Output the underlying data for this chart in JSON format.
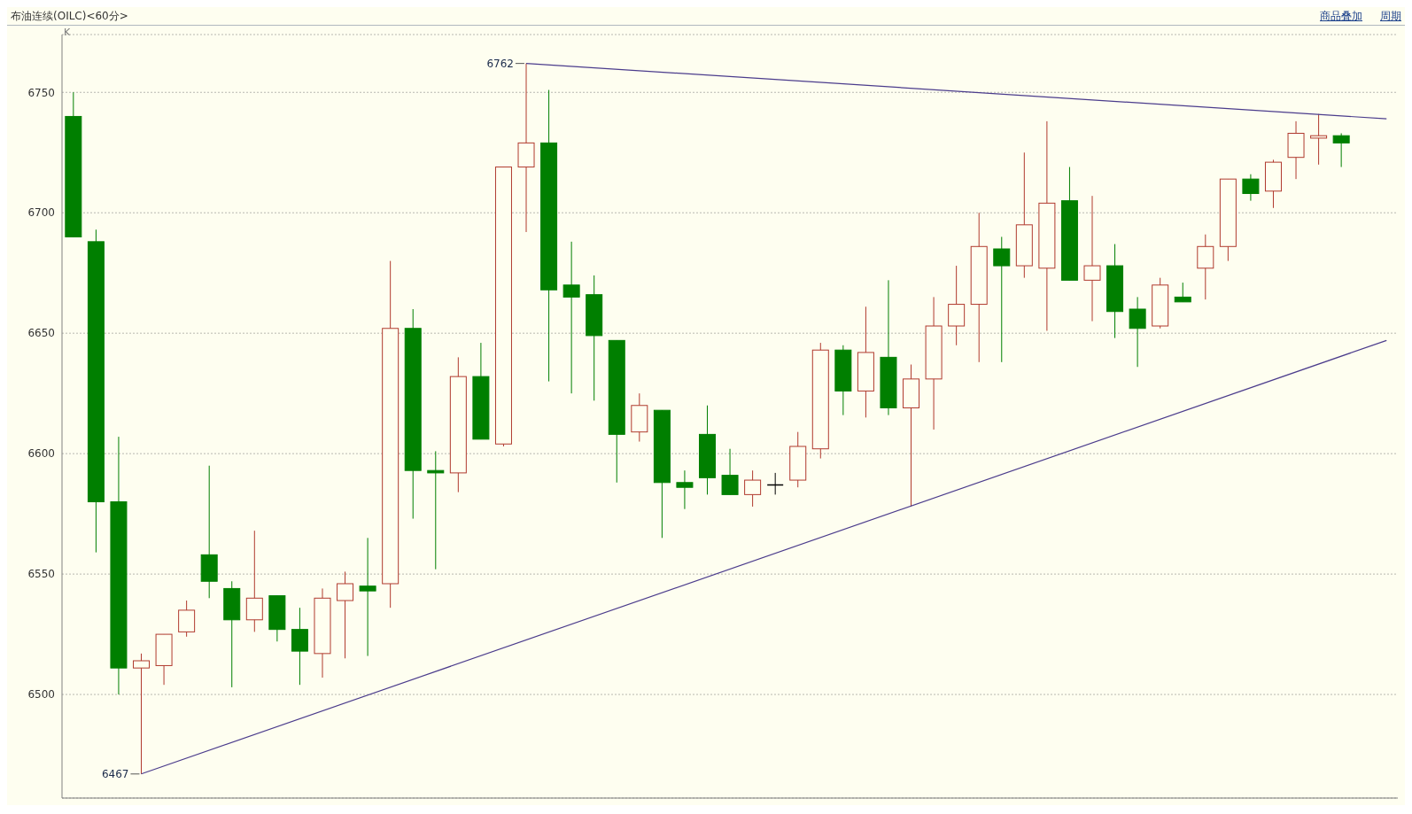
{
  "chart_data": {
    "type": "candlestick",
    "title": "布油连续(OILC)<60分>",
    "categories": [
      null,
      null,
      null,
      null,
      null,
      null,
      null,
      null,
      null,
      null,
      null,
      null,
      null,
      null,
      null,
      null,
      null,
      null,
      null,
      null,
      null,
      null,
      null,
      null,
      null,
      null,
      null,
      null,
      null,
      null,
      null,
      null,
      null,
      null,
      null,
      null,
      null,
      null,
      null,
      null,
      null,
      null,
      null,
      null,
      null,
      null,
      null,
      null,
      null,
      null,
      null,
      null,
      null,
      null,
      null,
      null,
      null,
      null,
      null
    ],
    "ohlc": [
      [
        6740,
        6750,
        6690,
        6690
      ],
      [
        6688,
        6693,
        6559,
        6580
      ],
      [
        6580,
        6607,
        6500,
        6511
      ],
      [
        6511,
        6517,
        6467,
        6514
      ],
      [
        6512,
        6525,
        6504,
        6525
      ],
      [
        6526,
        6539,
        6524,
        6535
      ],
      [
        6558,
        6595,
        6540,
        6547
      ],
      [
        6544,
        6547,
        6503,
        6531
      ],
      [
        6531,
        6568,
        6526,
        6540
      ],
      [
        6541,
        6541,
        6522,
        6527
      ],
      [
        6527,
        6536,
        6504,
        6518
      ],
      [
        6517,
        6544,
        6507,
        6540
      ],
      [
        6539,
        6551,
        6515,
        6546
      ],
      [
        6545,
        6565,
        6516,
        6543
      ],
      [
        6546,
        6680,
        6536,
        6652
      ],
      [
        6652,
        6660,
        6573,
        6593
      ],
      [
        6593,
        6601,
        6552,
        6592
      ],
      [
        6592,
        6640,
        6584,
        6632
      ],
      [
        6632,
        6646,
        6606,
        6606
      ],
      [
        6604,
        6719,
        6603,
        6719
      ],
      [
        6719,
        6762,
        6692,
        6729
      ],
      [
        6729,
        6751,
        6630,
        6668
      ],
      [
        6670,
        6688,
        6625,
        6665
      ],
      [
        6666,
        6674,
        6622,
        6649
      ],
      [
        6647,
        6647,
        6588,
        6608
      ],
      [
        6609,
        6625,
        6605,
        6620
      ],
      [
        6618,
        6618,
        6565,
        6588
      ],
      [
        6588,
        6593,
        6577,
        6586
      ],
      [
        6608,
        6620,
        6583,
        6590
      ],
      [
        6591,
        6602,
        6583,
        6583
      ],
      [
        6583,
        6593,
        6578,
        6589
      ],
      [
        6587,
        6592,
        6583,
        6587
      ],
      [
        6589,
        6609,
        6586,
        6603
      ],
      [
        6602,
        6646,
        6598,
        6643
      ],
      [
        6643,
        6645,
        6616,
        6626
      ],
      [
        6626,
        6661,
        6615,
        6642
      ],
      [
        6640,
        6672,
        6616,
        6619
      ],
      [
        6619,
        6637,
        6578,
        6631
      ],
      [
        6631,
        6665,
        6610,
        6653
      ],
      [
        6653,
        6678,
        6645,
        6662
      ],
      [
        6662,
        6700,
        6638,
        6686
      ],
      [
        6685,
        6690,
        6638,
        6678
      ],
      [
        6678,
        6725,
        6673,
        6695
      ],
      [
        6677,
        6738,
        6651,
        6704
      ],
      [
        6705,
        6719,
        6672,
        6672
      ],
      [
        6672,
        6707,
        6655,
        6678
      ],
      [
        6678,
        6687,
        6648,
        6659
      ],
      [
        6660,
        6665,
        6636,
        6652
      ],
      [
        6653,
        6673,
        6652,
        6670
      ],
      [
        6665,
        6671,
        6663,
        6663
      ],
      [
        6677,
        6691,
        6664,
        6686
      ],
      [
        6686,
        6714,
        6680,
        6714
      ],
      [
        6714,
        6716,
        6705,
        6708
      ],
      [
        6709,
        6722,
        6702,
        6721
      ],
      [
        6723,
        6738,
        6714,
        6733
      ],
      [
        6731,
        6741,
        6720,
        6732
      ],
      [
        6732,
        6733,
        6719,
        6729
      ],
      null,
      null
    ],
    "colors": [
      "#007f00",
      "#007f00",
      "#007f00",
      "#b03a2e",
      "#b03a2e",
      "#b03a2e",
      "#007f00",
      "#007f00",
      "#b03a2e",
      "#007f00",
      "#007f00",
      "#b03a2e",
      "#b03a2e",
      "#007f00",
      "#b03a2e",
      "#007f00",
      "#007f00",
      "#b03a2e",
      "#007f00",
      "#b03a2e",
      "#b03a2e",
      "#007f00",
      "#007f00",
      "#007f00",
      "#007f00",
      "#b03a2e",
      "#007f00",
      "#007f00",
      "#007f00",
      "#007f00",
      "#b03a2e",
      "#000000",
      "#b03a2e",
      "#b03a2e",
      "#007f00",
      "#b03a2e",
      "#007f00",
      "#b03a2e",
      "#b03a2e",
      "#b03a2e",
      "#b03a2e",
      "#007f00",
      "#b03a2e",
      "#b03a2e",
      "#007f00",
      "#b03a2e",
      "#007f00",
      "#007f00",
      "#b03a2e",
      "#007f00",
      "#b03a2e",
      "#b03a2e",
      "#007f00",
      "#b03a2e",
      "#b03a2e",
      "#b03a2e",
      "#007f00",
      null,
      null
    ],
    "series": [
      {
        "type": "line",
        "color": "#4b3c8c",
        "values": [
          null,
          null,
          null,
          null,
          null,
          null,
          null,
          null,
          null,
          null,
          null,
          null,
          null,
          null,
          null,
          null,
          null,
          null,
          null,
          null,
          6762,
          null,
          null,
          null,
          null,
          null,
          null,
          null,
          null,
          null,
          null,
          null,
          null,
          null,
          null,
          null,
          null,
          null,
          null,
          null,
          null,
          null,
          null,
          null,
          null,
          null,
          null,
          null,
          null,
          null,
          null,
          null,
          null,
          null,
          null,
          null,
          null,
          null,
          6739
        ]
      },
      {
        "type": "line",
        "color": "#4b3c8c",
        "values": [
          null,
          null,
          null,
          6467,
          null,
          null,
          null,
          null,
          null,
          null,
          null,
          null,
          null,
          null,
          null,
          null,
          null,
          null,
          null,
          null,
          null,
          null,
          null,
          null,
          null,
          null,
          null,
          null,
          null,
          null,
          null,
          null,
          null,
          null,
          null,
          null,
          null,
          null,
          null,
          null,
          null,
          null,
          null,
          null,
          null,
          null,
          null,
          null,
          null,
          null,
          null,
          null,
          null,
          null,
          null,
          null,
          null,
          null,
          6647
        ]
      }
    ],
    "ylim": [
      6457,
      6774
    ],
    "yticks": [
      6500,
      6550,
      6600,
      6650,
      6700,
      6750
    ],
    "grid": "y",
    "tick_labels": "y",
    "marker": "none",
    "annotations": [
      "6762",
      "6467",
      "K",
      "商品叠加",
      "周期"
    ]
  }
}
